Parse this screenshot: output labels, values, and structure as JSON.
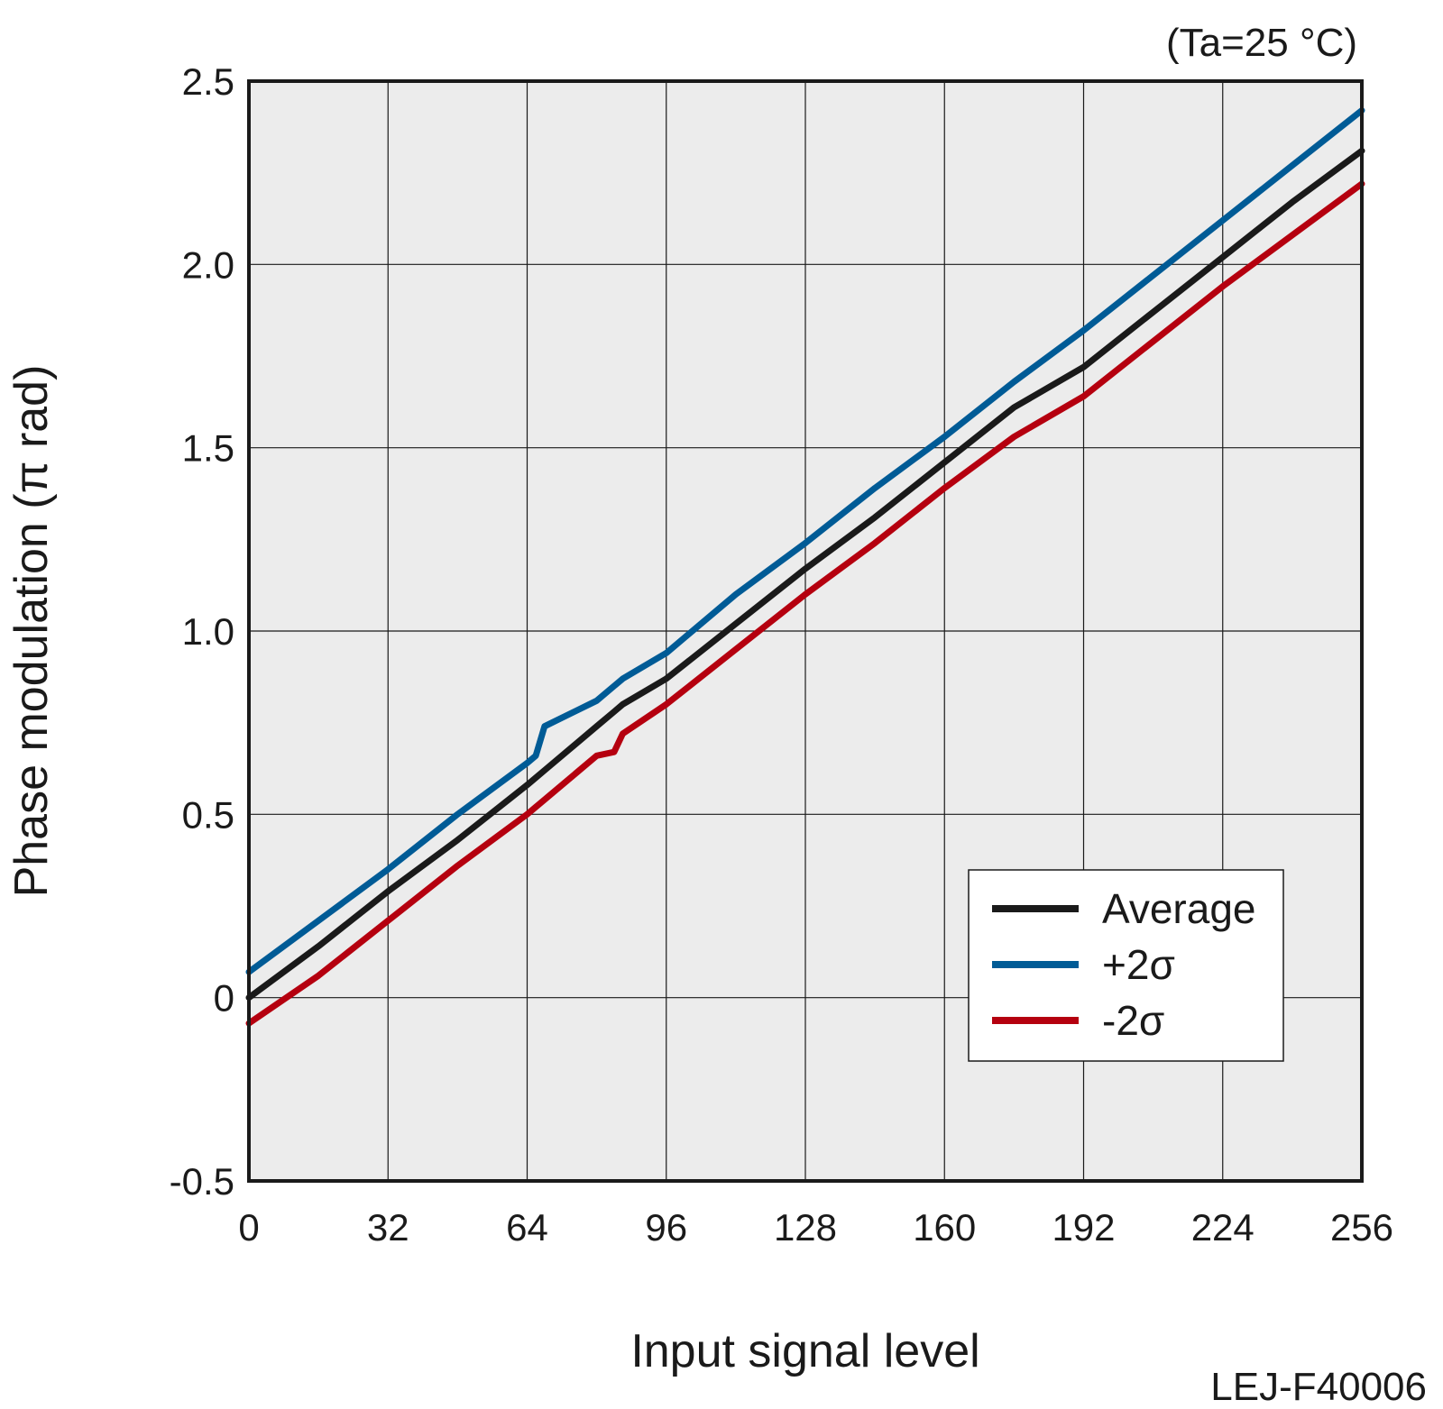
{
  "chart_data": {
    "type": "line",
    "condition_note": "(Ta=25 °C)",
    "xlabel": "Input signal level",
    "ylabel": "Phase modulation (π rad)",
    "xlim": [
      0,
      256
    ],
    "ylim": [
      -0.5,
      2.5
    ],
    "x_ticks": [
      "0",
      "32",
      "64",
      "96",
      "128",
      "160",
      "192",
      "224",
      "256"
    ],
    "y_ticks": [
      "-0.5",
      "0",
      "0.5",
      "1.0",
      "1.5",
      "2.0",
      "2.5"
    ],
    "grid": true,
    "legend_position": "lower-right",
    "code_label": "LEJ-F40006",
    "x": [
      0,
      16,
      32,
      48,
      64,
      66,
      68,
      80,
      84,
      86,
      96,
      112,
      128,
      144,
      160,
      176,
      192,
      208,
      224,
      240,
      256
    ],
    "series": [
      {
        "name": "Average",
        "color": "#1a1a1a",
        "values": [
          0.0,
          0.14,
          0.29,
          0.43,
          0.58,
          0.6,
          0.62,
          0.74,
          0.78,
          0.8,
          0.87,
          1.02,
          1.17,
          1.31,
          1.46,
          1.61,
          1.72,
          1.87,
          2.02,
          2.17,
          2.31
        ]
      },
      {
        "name": "+2σ",
        "color": "#005b96",
        "values": [
          0.07,
          0.21,
          0.35,
          0.5,
          0.64,
          0.66,
          0.74,
          0.81,
          0.85,
          0.87,
          0.94,
          1.1,
          1.24,
          1.39,
          1.53,
          1.68,
          1.82,
          1.97,
          2.12,
          2.27,
          2.42
        ]
      },
      {
        "name": "-2σ",
        "color": "#b5000f",
        "values": [
          -0.07,
          0.06,
          0.21,
          0.36,
          0.5,
          0.52,
          0.54,
          0.66,
          0.67,
          0.72,
          0.8,
          0.95,
          1.1,
          1.24,
          1.39,
          1.53,
          1.64,
          1.79,
          1.94,
          2.08,
          2.22
        ]
      }
    ]
  }
}
